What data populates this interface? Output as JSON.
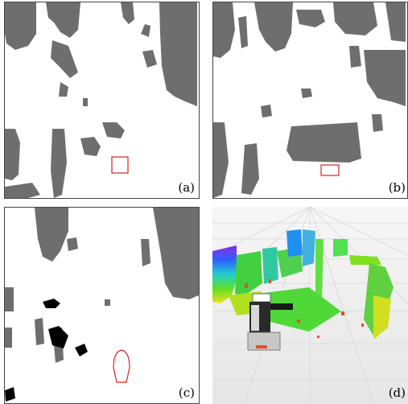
{
  "figure": {
    "panels": [
      {
        "id": "a",
        "label": "(a)",
        "content": "occupancy-grid-map",
        "overlay": "red-rectangle-marker"
      },
      {
        "id": "b",
        "label": "(b)",
        "content": "occupancy-grid-map",
        "overlay": "red-rectangle-marker"
      },
      {
        "id": "c",
        "label": "(c)",
        "content": "occupancy-grid-map-with-obstacles",
        "overlay": "red-rounded-outline-marker"
      },
      {
        "id": "d",
        "label": "(d)",
        "content": "3d-point-cloud-with-robot"
      }
    ],
    "colors": {
      "occupied": "#6e6e6e",
      "free": "#ffffff",
      "marker": "#e02020",
      "obstacle": "#000000"
    }
  }
}
